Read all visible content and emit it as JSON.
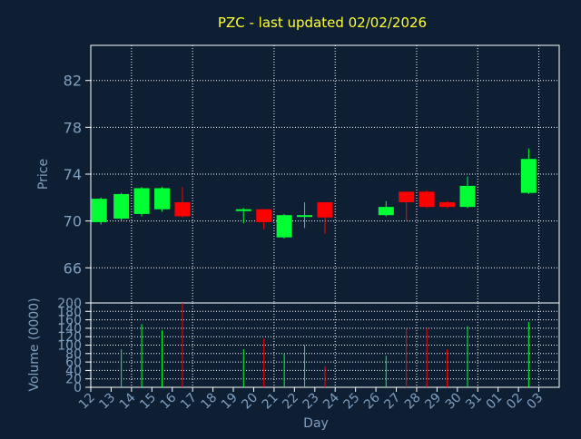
{
  "title": "PZC - last updated 02/02/2026",
  "colors": {
    "background": "#0f1f33",
    "title": "#ffff33",
    "axis_text": "#7f9fbf",
    "frame": "#ffffff",
    "grid": "#ffffff",
    "up": "#00ff33",
    "down": "#ff0000"
  },
  "chart_data": [
    {
      "type": "candlestick",
      "title": "PZC - last updated 02/02/2026",
      "ylabel": "Price",
      "ylim": [
        63,
        85
      ],
      "yticks": [
        66,
        70,
        74,
        78,
        82
      ],
      "grid": true,
      "x": [
        "12",
        "13",
        "14",
        "15",
        "16",
        "17",
        "18",
        "19",
        "20",
        "21",
        "22",
        "23",
        "24",
        "25",
        "26",
        "27",
        "28",
        "29",
        "30",
        "31",
        "01",
        "02",
        "03"
      ],
      "candles": [
        {
          "day": "12",
          "open": 69.9,
          "close": 71.9,
          "high": 72.0,
          "low": 69.7
        },
        {
          "day": "13",
          "open": 70.2,
          "close": 72.3,
          "high": 72.4,
          "low": 70.0
        },
        {
          "day": "14",
          "open": 70.6,
          "close": 72.8,
          "high": 72.9,
          "low": 70.4
        },
        {
          "day": "15",
          "open": 71.0,
          "close": 72.8,
          "high": 72.9,
          "low": 70.8
        },
        {
          "day": "16",
          "open": 71.6,
          "close": 70.4,
          "high": 72.9,
          "low": 70.3
        },
        {
          "day": "19",
          "open": 70.9,
          "close": 71.0,
          "high": 71.1,
          "low": 69.8
        },
        {
          "day": "20",
          "open": 71.0,
          "close": 69.9,
          "high": 71.0,
          "low": 69.3
        },
        {
          "day": "21",
          "open": 68.6,
          "close": 70.5,
          "high": 70.6,
          "low": 68.5
        },
        {
          "day": "22",
          "open": 70.4,
          "close": 70.5,
          "high": 71.6,
          "low": 69.4
        },
        {
          "day": "23",
          "open": 71.6,
          "close": 70.3,
          "high": 71.6,
          "low": 68.9
        },
        {
          "day": "26",
          "open": 70.5,
          "close": 71.2,
          "high": 71.7,
          "low": 70.4
        },
        {
          "day": "27",
          "open": 72.5,
          "close": 71.6,
          "high": 72.5,
          "low": 70.0
        },
        {
          "day": "28",
          "open": 72.5,
          "close": 71.2,
          "high": 72.6,
          "low": 71.1
        },
        {
          "day": "29",
          "open": 71.6,
          "close": 71.2,
          "high": 71.7,
          "low": 71.1
        },
        {
          "day": "30",
          "open": 71.2,
          "close": 73.0,
          "high": 73.8,
          "low": 71.1
        },
        {
          "day": "02",
          "open": 72.4,
          "close": 75.3,
          "high": 76.2,
          "low": 72.3
        }
      ]
    },
    {
      "type": "bar",
      "ylabel": "Volume (0000)",
      "xlabel": "Day",
      "ylim": [
        0,
        200
      ],
      "yticks": [
        0,
        20,
        40,
        60,
        80,
        100,
        120,
        140,
        160,
        180,
        200
      ],
      "grid": true,
      "x": [
        "12",
        "13",
        "14",
        "15",
        "16",
        "17",
        "18",
        "19",
        "20",
        "21",
        "22",
        "23",
        "24",
        "25",
        "26",
        "27",
        "28",
        "29",
        "30",
        "31",
        "01",
        "02",
        "03"
      ],
      "bars": [
        {
          "day": "13",
          "value": 90,
          "direction": "up"
        },
        {
          "day": "14",
          "value": 150,
          "direction": "up"
        },
        {
          "day": "15",
          "value": 135,
          "direction": "up"
        },
        {
          "day": "16",
          "value": 200,
          "direction": "down"
        },
        {
          "day": "19",
          "value": 90,
          "direction": "up"
        },
        {
          "day": "20",
          "value": 115,
          "direction": "down"
        },
        {
          "day": "21",
          "value": 80,
          "direction": "up"
        },
        {
          "day": "22",
          "value": 100,
          "direction": "up"
        },
        {
          "day": "23",
          "value": 50,
          "direction": "down"
        },
        {
          "day": "26",
          "value": 75,
          "direction": "up"
        },
        {
          "day": "27",
          "value": 140,
          "direction": "down"
        },
        {
          "day": "28",
          "value": 140,
          "direction": "down"
        },
        {
          "day": "29",
          "value": 90,
          "direction": "down"
        },
        {
          "day": "30",
          "value": 145,
          "direction": "up"
        },
        {
          "day": "02",
          "value": 155,
          "direction": "up"
        }
      ]
    }
  ]
}
